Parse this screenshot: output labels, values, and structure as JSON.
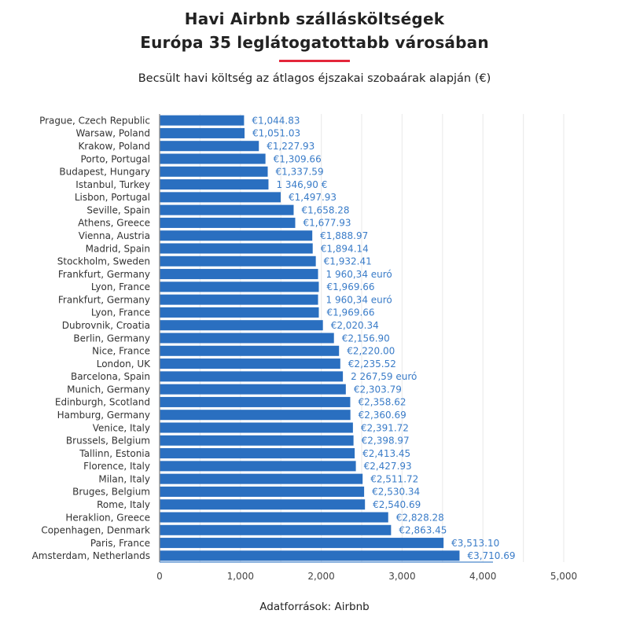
{
  "chart_data": {
    "type": "bar",
    "orientation": "horizontal",
    "title": "Havi Airbnb szállásköltségek",
    "title_line2": "Európa 35 leglátogatottabb városában",
    "subtitle": "Becsült havi költség az átlagos éjszakai szobaárak alapján (€)",
    "source": "Adatforrások: Airbnb",
    "xlabel": "",
    "ylabel": "",
    "xlim": [
      0,
      5000
    ],
    "grid": true,
    "x_ticks": [
      "0",
      "1,000",
      "2,000",
      "3,000",
      "4,000",
      "5,000"
    ],
    "x_tick_values": [
      0,
      1000,
      2000,
      3000,
      4000,
      5000
    ],
    "categories": [
      "Prague, Czech Republic",
      "Warsaw, Poland",
      "Krakow, Poland",
      "Porto, Portugal",
      "Budapest, Hungary",
      "Istanbul, Turkey",
      "Lisbon, Portugal",
      "Seville, Spain",
      "Athens, Greece",
      "Vienna, Austria",
      "Madrid, Spain",
      "Stockholm, Sweden",
      "Frankfurt, Germany",
      "Lyon, France",
      "Frankfurt, Germany",
      "Lyon, France",
      "Dubrovnik, Croatia",
      "Berlin, Germany",
      "Nice, France",
      "London, UK",
      "Barcelona, Spain",
      "Munich, Germany",
      "Edinburgh, Scotland",
      "Hamburg, Germany",
      "Venice, Italy",
      "Brussels, Belgium",
      "Tallinn, Estonia",
      "Florence, Italy",
      "Milan, Italy",
      "Bruges, Belgium",
      "Rome, Italy",
      "Heraklion, Greece",
      "Copenhagen, Denmark",
      "Paris, France",
      "Amsterdam, Netherlands"
    ],
    "values": [
      1044.83,
      1051.03,
      1227.93,
      1309.66,
      1337.59,
      1346.9,
      1497.93,
      1658.28,
      1677.93,
      1888.97,
      1894.14,
      1932.41,
      1960.34,
      1969.66,
      1960.34,
      1969.66,
      2020.34,
      2156.9,
      2220.0,
      2235.52,
      2267.59,
      2303.79,
      2358.62,
      2360.69,
      2391.72,
      2398.97,
      2413.45,
      2427.93,
      2511.72,
      2530.34,
      2540.69,
      2828.28,
      2863.45,
      3513.1,
      3710.69
    ],
    "value_labels": [
      "€1,044.83",
      "€1,051.03",
      "€1,227.93",
      "€1,309.66",
      "€1,337.59",
      "1 346,90 €",
      "€1,497.93",
      "€1,658.28",
      "€1,677.93",
      "€1,888.97",
      "€1,894.14",
      "€1,932.41",
      "1 960,34 euró",
      "€1,969.66",
      "1 960,34 euró",
      "€1,969.66",
      "€2,020.34",
      "€2,156.90",
      "€2,220.00",
      "€2,235.52",
      "2 267,59 euró",
      "€2,303.79",
      "€2,358.62",
      "€2,360.69",
      "€2,391.72",
      "€2,398.97",
      "€2,413.45",
      "€2,427.93",
      "€2,511.72",
      "€2,530.34",
      "€2,540.69",
      "€2,828.28",
      "€2,863.45",
      "€3,513.10",
      "€3,710.69"
    ],
    "colors": {
      "bar": "#2a6fc0",
      "value_label": "#3a7cc8",
      "accent_rule": "#e3263a",
      "grid": "#ececec",
      "axis": "#4a86cc"
    }
  }
}
